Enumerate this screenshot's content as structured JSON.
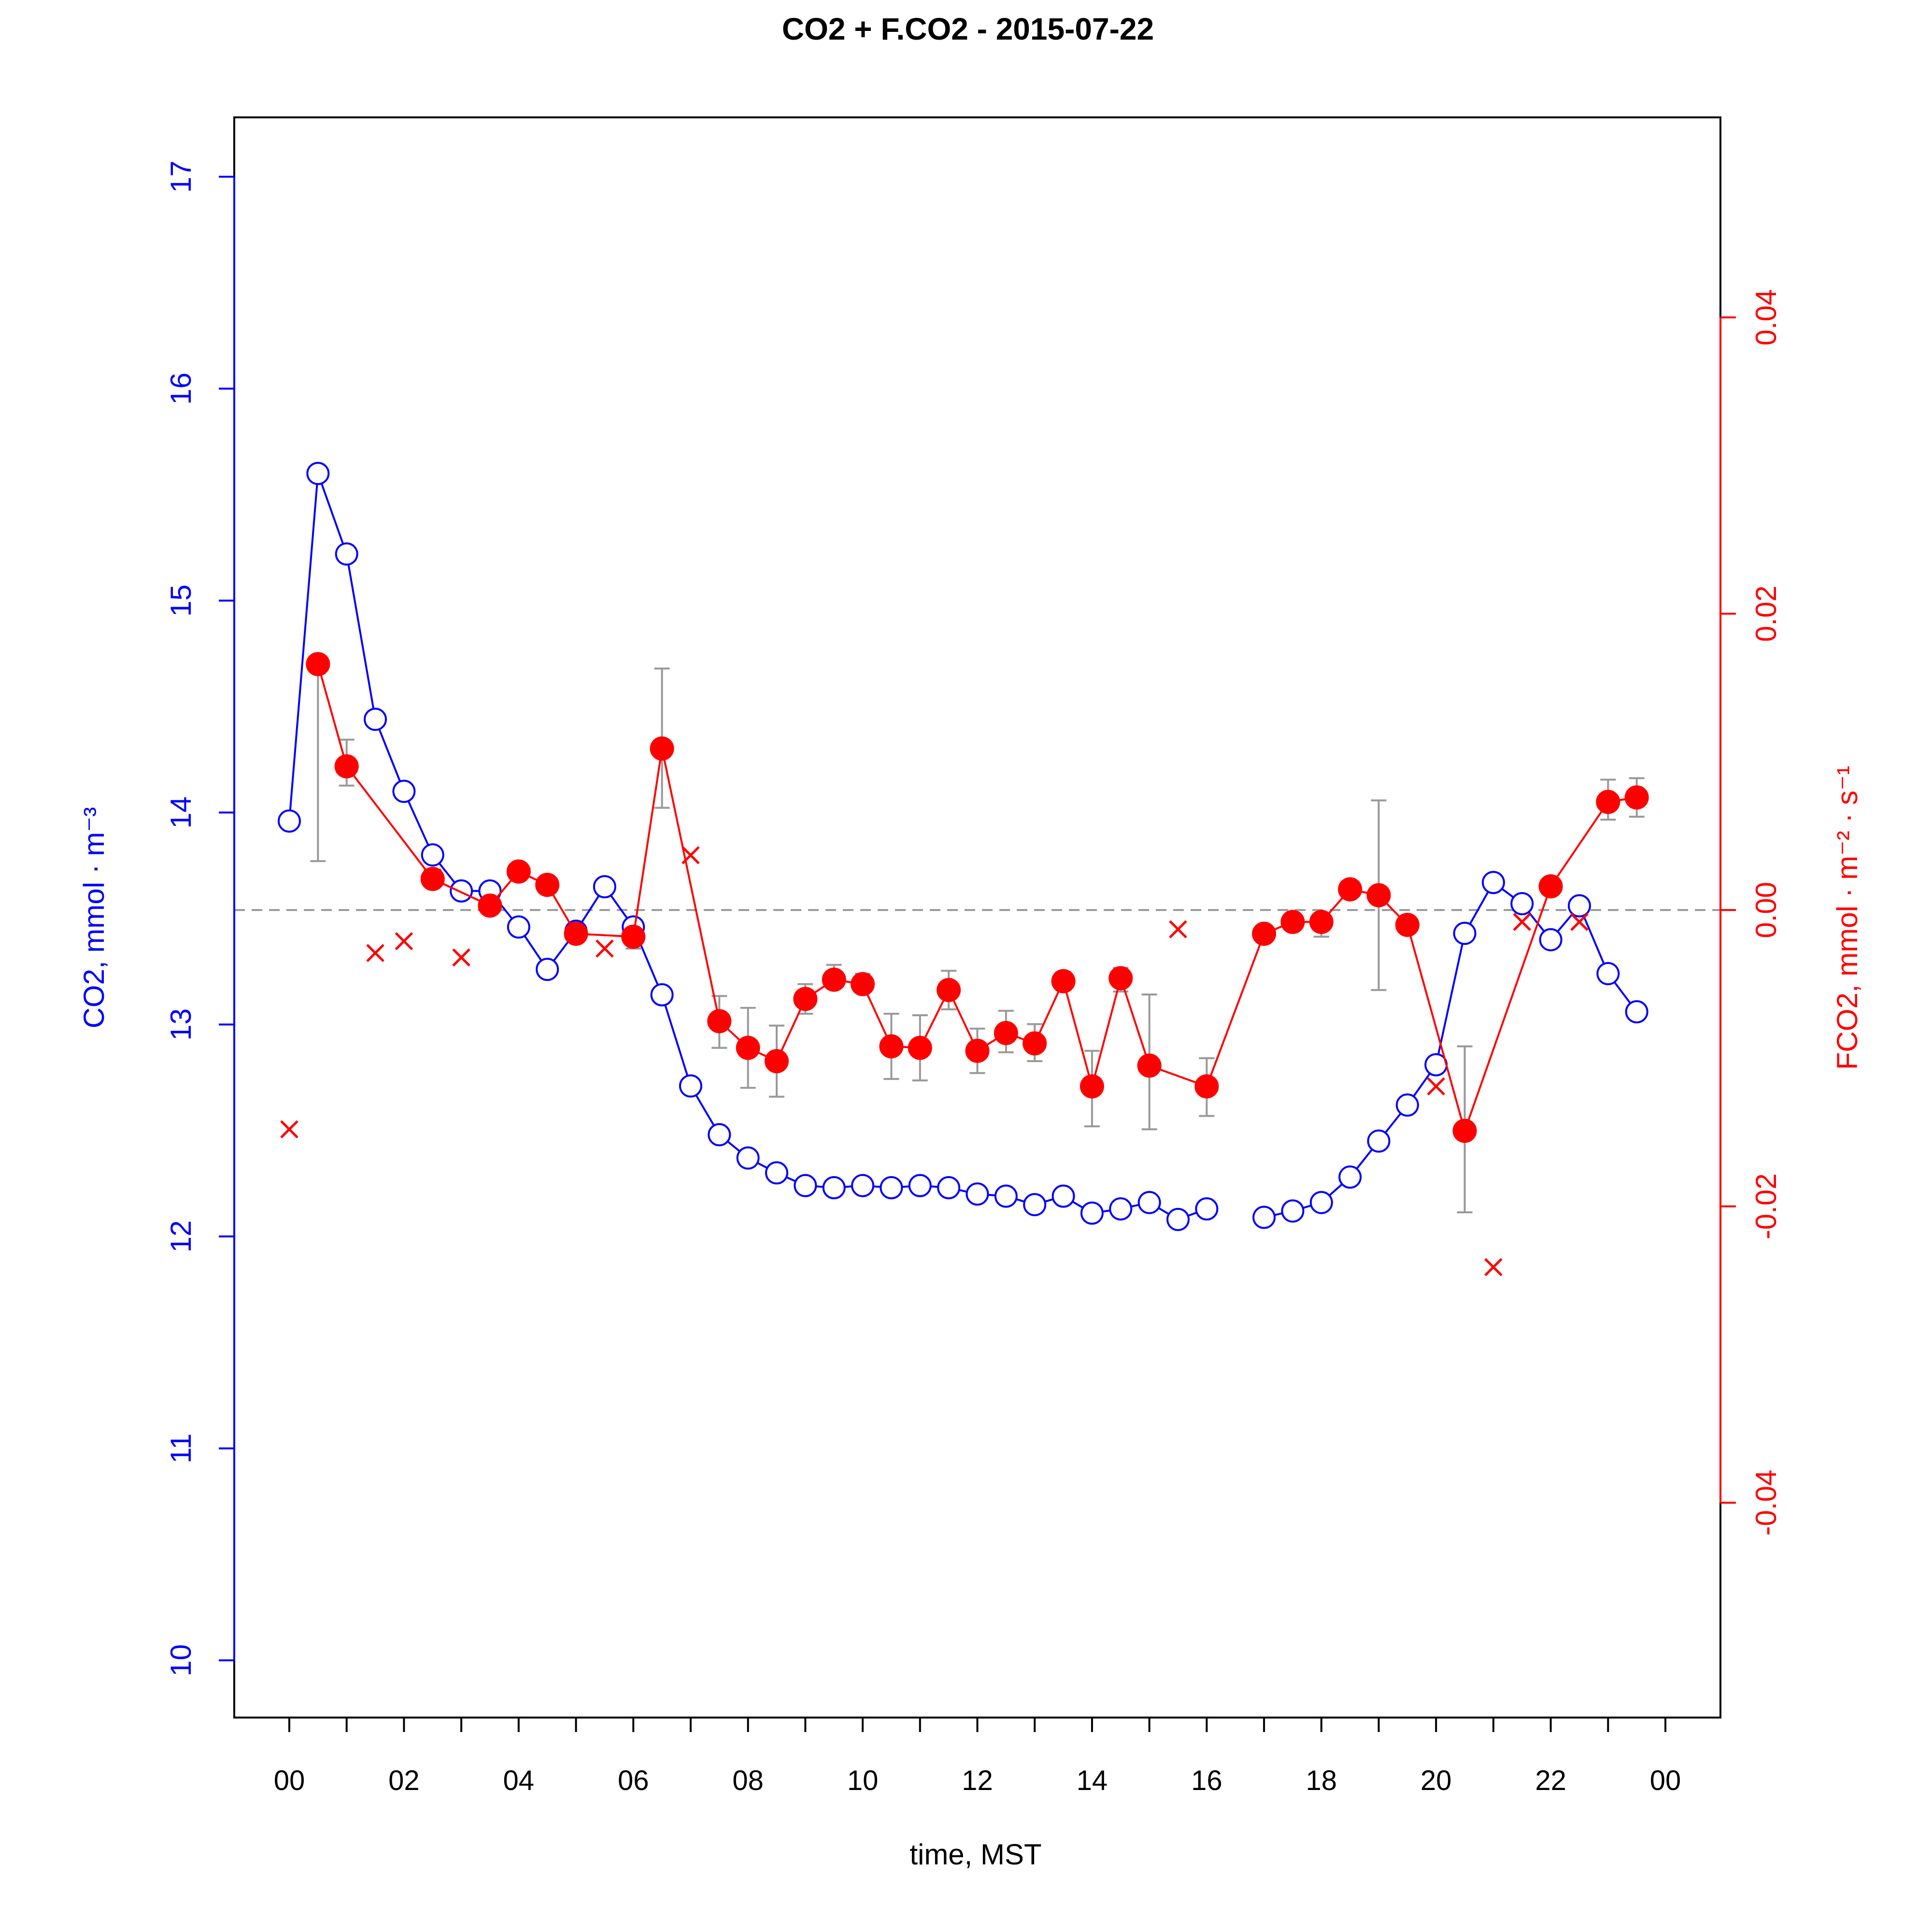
{
  "chart_data": {
    "type": "line",
    "title": "CO2 + F.CO2 -  2015-07-22",
    "xlabel": "time, MST",
    "ylabel_left": "CO2, mmol · m⁻³",
    "ylabel_right": "FCO2, mmol · m⁻² · s⁻¹",
    "xlim_hours": [
      -0.96,
      24.96
    ],
    "ylim_left": [
      9.73,
      17.28
    ],
    "ylim_right": [
      -0.0545,
      0.0535
    ],
    "x_tick_labels": [
      "00",
      "02",
      "04",
      "06",
      "08",
      "10",
      "12",
      "14",
      "16",
      "18",
      "20",
      "22",
      "00"
    ],
    "y_left_ticks": [
      10,
      11,
      12,
      13,
      14,
      15,
      16,
      17
    ],
    "y_left_tick_labels": [
      "10",
      "11",
      "12",
      "13",
      "14",
      "15",
      "16",
      "17"
    ],
    "y_right_ticks": [
      -0.04,
      -0.02,
      0.0,
      0.02,
      0.04
    ],
    "y_right_tick_labels": [
      "-0.04",
      "-0.02",
      "0.00",
      "0.02",
      "0.04"
    ],
    "zero_line_flux": 0.0,
    "colors": {
      "co2": "#0000ff",
      "flux": "#ff0000",
      "errorbar": "#999999",
      "zero_line": "#999999",
      "axis": "#000000"
    },
    "series": [
      {
        "kind": "co2_line",
        "x": [
          0,
          0.5,
          1,
          1.5,
          2,
          2.5,
          3,
          3.5,
          4,
          4.5,
          5,
          5.5,
          6,
          6.5,
          7,
          7.5,
          8,
          8.5,
          9,
          9.5,
          10,
          10.5,
          11,
          11.5,
          12,
          12.5,
          13,
          13.5,
          14,
          14.5,
          15,
          15.5,
          16,
          16.5,
          17,
          17.5,
          18,
          18.5,
          19,
          19.5,
          20,
          20.5,
          21,
          21.5,
          22,
          22.5,
          23,
          23.5
        ],
        "y": [
          13.96,
          15.6,
          15.22,
          14.44,
          14.1,
          13.8,
          13.63,
          13.63,
          13.46,
          13.26,
          13.44,
          13.65,
          13.46,
          13.14,
          12.71,
          12.48,
          12.37,
          12.3,
          12.24,
          12.23,
          12.24,
          12.23,
          12.24,
          12.23,
          12.2,
          12.19,
          12.15,
          12.19,
          12.11,
          12.13,
          12.16,
          12.08,
          12.13,
          null,
          12.09,
          12.12,
          12.16,
          12.28,
          12.45,
          12.62,
          12.81,
          13.43,
          13.67,
          13.57,
          13.4,
          13.56,
          13.24,
          13.06
        ]
      },
      {
        "kind": "flux_line",
        "x": [
          0.5,
          1,
          2.5,
          3.5,
          4,
          4.5,
          5,
          6,
          6.5,
          7.5,
          8,
          8.5,
          9,
          9.5,
          10,
          10.5,
          11,
          11.5,
          12,
          12.5,
          13,
          13.5,
          14,
          14.5,
          15,
          16,
          17,
          17.5,
          18,
          18.5,
          19,
          19.5,
          20.5,
          22,
          23,
          23.5
        ],
        "y": [
          0.0166,
          0.0097,
          0.0021,
          0.0003,
          0.0026,
          0.0017,
          -0.0016,
          -0.0018,
          0.0109,
          -0.0075,
          -0.0093,
          -0.0102,
          -0.006,
          -0.0047,
          -0.005,
          -0.0092,
          -0.0093,
          -0.0054,
          -0.0095,
          -0.0083,
          -0.009,
          -0.0048,
          -0.0119,
          -0.0046,
          -0.0105,
          -0.0119,
          -0.0016,
          -0.0008,
          -0.0008,
          0.0014,
          0.001,
          -0.001,
          -0.0149,
          0.0016,
          0.0073,
          0.0076
        ],
        "err_low": [
          0.0033,
          0.0084,
          null,
          null,
          null,
          null,
          null,
          -0.0026,
          0.0069,
          -0.0093,
          -0.012,
          -0.0126,
          -0.007,
          -0.0052,
          -0.0055,
          -0.0114,
          -0.0115,
          -0.0067,
          -0.011,
          -0.0096,
          -0.0102,
          -0.0054,
          -0.0146,
          -0.0055,
          -0.0148,
          -0.0139,
          null,
          null,
          -0.0018,
          null,
          -0.0054,
          null,
          -0.0204,
          null,
          0.0061,
          0.0063
        ],
        "err_high": [
          0.0166,
          0.0115,
          null,
          null,
          null,
          null,
          null,
          -0.0011,
          0.0163,
          -0.0058,
          -0.0066,
          -0.0078,
          -0.005,
          -0.0037,
          -0.0043,
          -0.007,
          -0.0071,
          -0.0041,
          -0.008,
          -0.0068,
          -0.0077,
          -0.0042,
          -0.0095,
          -0.0039,
          -0.0057,
          -0.01,
          null,
          null,
          -0.0003,
          null,
          0.0074,
          null,
          -0.0092,
          null,
          0.0088,
          0.0089
        ]
      },
      {
        "kind": "flux_cross",
        "x": [
          0,
          1.5,
          2,
          2.5,
          3,
          5.5,
          7,
          15.5,
          20,
          21.5,
          22.5,
          21
        ],
        "y": [
          -0.0148,
          -0.0029,
          -0.0021,
          0.0022,
          -0.0032,
          -0.0026,
          0.0037,
          -0.0013,
          -0.0119,
          -0.0008,
          -0.0008,
          -0.0241
        ]
      }
    ]
  }
}
